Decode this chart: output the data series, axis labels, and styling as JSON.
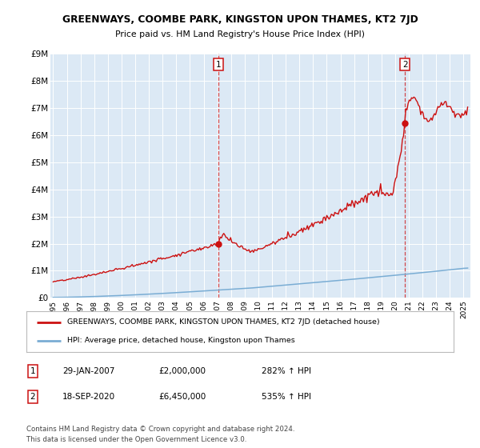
{
  "title": "GREENWAYS, COOMBE PARK, KINGSTON UPON THAMES, KT2 7JD",
  "subtitle": "Price paid vs. HM Land Registry's House Price Index (HPI)",
  "ylim": [
    0,
    9000000
  ],
  "yticks": [
    0,
    1000000,
    2000000,
    3000000,
    4000000,
    5000000,
    6000000,
    7000000,
    8000000,
    9000000
  ],
  "ytick_labels": [
    "£0",
    "£1M",
    "£2M",
    "£3M",
    "£4M",
    "£5M",
    "£6M",
    "£7M",
    "£8M",
    "£9M"
  ],
  "hpi_color": "#7aadd4",
  "price_color": "#cc1111",
  "bg_color": "#dce9f5",
  "annotation1_date": 2007.07,
  "annotation1_value": 2000000,
  "annotation2_date": 2020.72,
  "annotation2_value": 6450000,
  "legend_line1": "GREENWAYS, COOMBE PARK, KINGSTON UPON THAMES, KT2 7JD (detached house)",
  "legend_line2": "HPI: Average price, detached house, Kingston upon Thames",
  "note1_date": "29-JAN-2007",
  "note1_price": "£2,000,000",
  "note1_hpi": "282% ↑ HPI",
  "note2_date": "18-SEP-2020",
  "note2_price": "£6,450,000",
  "note2_hpi": "535% ↑ HPI",
  "footer": "Contains HM Land Registry data © Crown copyright and database right 2024.\nThis data is licensed under the Open Government Licence v3.0."
}
